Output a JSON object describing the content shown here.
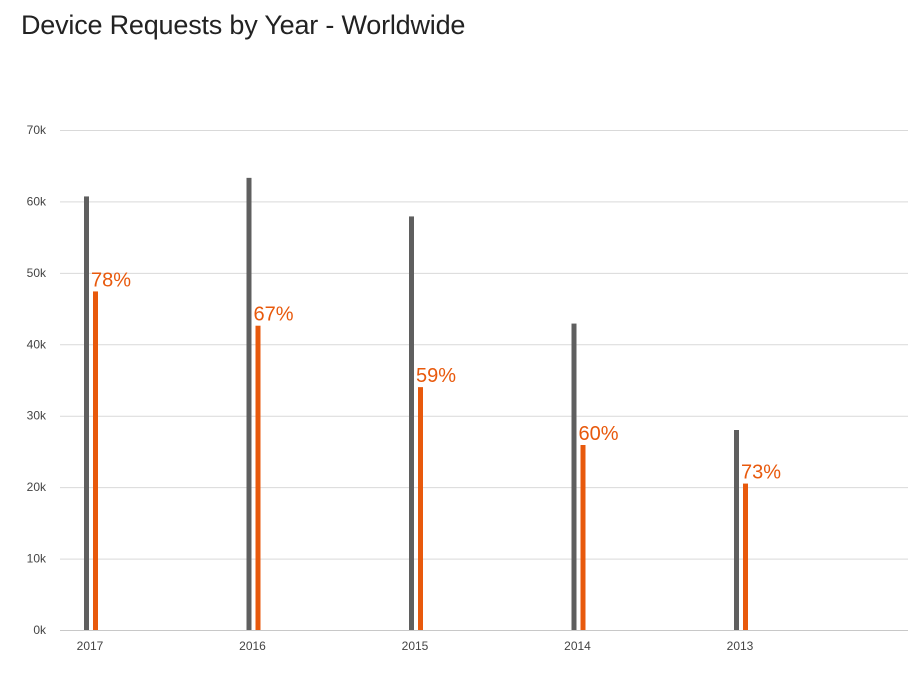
{
  "chart_data": {
    "type": "bar",
    "title": "Device Requests by Year - Worldwide",
    "xlabel": "",
    "ylabel": "",
    "categories": [
      "2017",
      "2016",
      "2015",
      "2014",
      "2013"
    ],
    "ylim": [
      0,
      70000
    ],
    "y_ticks": [
      {
        "value": 0,
        "label": "0k"
      },
      {
        "value": 10000,
        "label": "10k"
      },
      {
        "value": 20000,
        "label": "20k"
      },
      {
        "value": 30000,
        "label": "30k"
      },
      {
        "value": 40000,
        "label": "40k"
      },
      {
        "value": 50000,
        "label": "50k"
      },
      {
        "value": 60000,
        "label": "60k"
      },
      {
        "value": 70000,
        "label": "70k"
      }
    ],
    "grid": true,
    "legend": "none",
    "series": [
      {
        "color": "#5f5f5f",
        "values": [
          60700,
          63300,
          57900,
          42900,
          28000
        ]
      },
      {
        "color": "#e8590c",
        "values": [
          47400,
          42600,
          34000,
          25900,
          20500
        ],
        "data_labels": [
          "78%",
          "67%",
          "59%",
          "60%",
          "73%"
        ]
      }
    ]
  }
}
